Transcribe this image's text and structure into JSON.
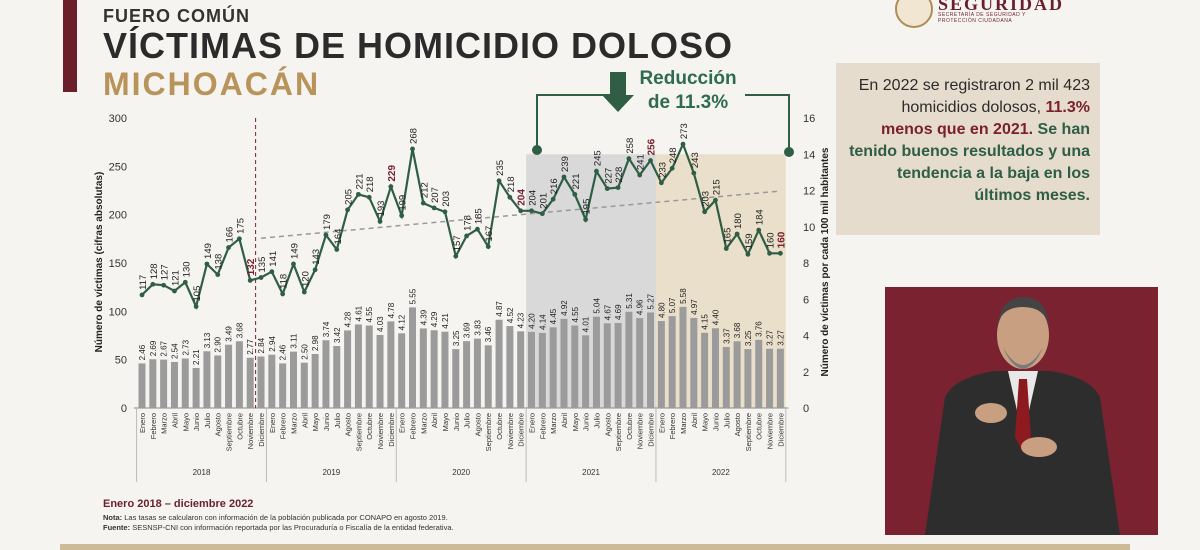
{
  "header": {
    "section": "FUERO COMÚN",
    "title": "VÍCTIMAS DE HOMICIDIO DOLOSO",
    "state": "MICHOACÁN"
  },
  "logo": {
    "brand": "SEGURIDAD",
    "sub": "SECRETARÍA DE SEGURIDAD Y PROTECCIÓN CIUDADANA"
  },
  "reduction": {
    "line1": "Reducción",
    "line2": "de 11.3%"
  },
  "callout": {
    "p1": "En 2022 se registraron 2 mil 423 homicidios dolosos,",
    "p2": "11.3% menos que en 2021.",
    "p3": "Se han tenido buenos resultados y una tendencia a la baja en los últimos meses."
  },
  "footer": {
    "period": "Enero 2018 – diciembre 2022",
    "nota_label": "Nota:",
    "nota": "Las tasas se calcularon con información de la población publicada por CONAPO en agosto 2019.",
    "fuente_label": "Fuente:",
    "fuente": "SESNSP-CNI con información reportada por las Procuraduría o Fiscalía de la entidad federativa."
  },
  "colors": {
    "line": "#2f5e45",
    "bars": "#9b9b9b",
    "accent": "#7a1f2d",
    "gold": "#b8935a",
    "highlight2021": "#d9d9d9",
    "highlight2022": "#eadfcb"
  },
  "chart_data": {
    "type": "bar",
    "months": [
      "Enero",
      "Febrero",
      "Marzo",
      "Abril",
      "Mayo",
      "Junio",
      "Julio",
      "Agosto",
      "Septiembre",
      "Octubre",
      "Noviembre",
      "Diciembre"
    ],
    "years": [
      "2018",
      "2019",
      "2020",
      "2021",
      "2022"
    ],
    "ylabel_left": "Número de víctimas (cifras absolutas)",
    "ylabel_right": "Número de víctimas por cada 100 mil habitantes",
    "ylim_left": [
      0,
      300
    ],
    "ylim_right": [
      0,
      16
    ],
    "yticks_left": [
      0,
      50,
      100,
      150,
      200,
      250,
      300
    ],
    "yticks_right": [
      0,
      2,
      4,
      6,
      8,
      10,
      12,
      14,
      16
    ],
    "series": [
      {
        "name": "Víctimas (cifras absolutas)",
        "values": [
          117,
          128,
          127,
          121,
          130,
          105,
          149,
          138,
          166,
          175,
          132,
          135,
          141,
          118,
          149,
          120,
          143,
          179,
          164,
          205,
          221,
          218,
          193,
          229,
          199,
          268,
          212,
          207,
          203,
          157,
          178,
          185,
          167,
          235,
          218,
          204,
          204,
          201,
          216,
          239,
          221,
          195,
          245,
          227,
          228,
          258,
          241,
          256,
          233,
          248,
          273,
          243,
          203,
          215,
          165,
          180,
          159,
          184,
          160,
          160
        ]
      },
      {
        "name": "Tasa por cada 100 mil habitantes",
        "values": [
          2.46,
          2.69,
          2.67,
          2.54,
          2.73,
          2.21,
          3.13,
          2.9,
          3.49,
          3.68,
          2.77,
          2.84,
          2.94,
          2.46,
          3.11,
          2.5,
          2.98,
          3.74,
          3.42,
          4.28,
          4.61,
          4.55,
          4.03,
          4.78,
          4.12,
          5.55,
          4.39,
          4.29,
          4.21,
          3.25,
          3.69,
          3.83,
          3.46,
          4.87,
          4.52,
          4.23,
          4.2,
          4.14,
          4.45,
          4.92,
          4.55,
          4.01,
          5.04,
          4.67,
          4.69,
          5.31,
          4.96,
          5.27,
          4.8,
          5.07,
          5.58,
          4.97,
          4.15,
          4.4,
          3.37,
          3.68,
          3.25,
          3.76,
          3.27,
          3.27
        ]
      }
    ],
    "highlighted_points": [
      "Noviembre 2018",
      "Diciembre 2019",
      "Diciembre 2020",
      "Diciembre 2021",
      "Diciembre 2022"
    ],
    "trend": "dashed linear trend line",
    "grid": false
  }
}
